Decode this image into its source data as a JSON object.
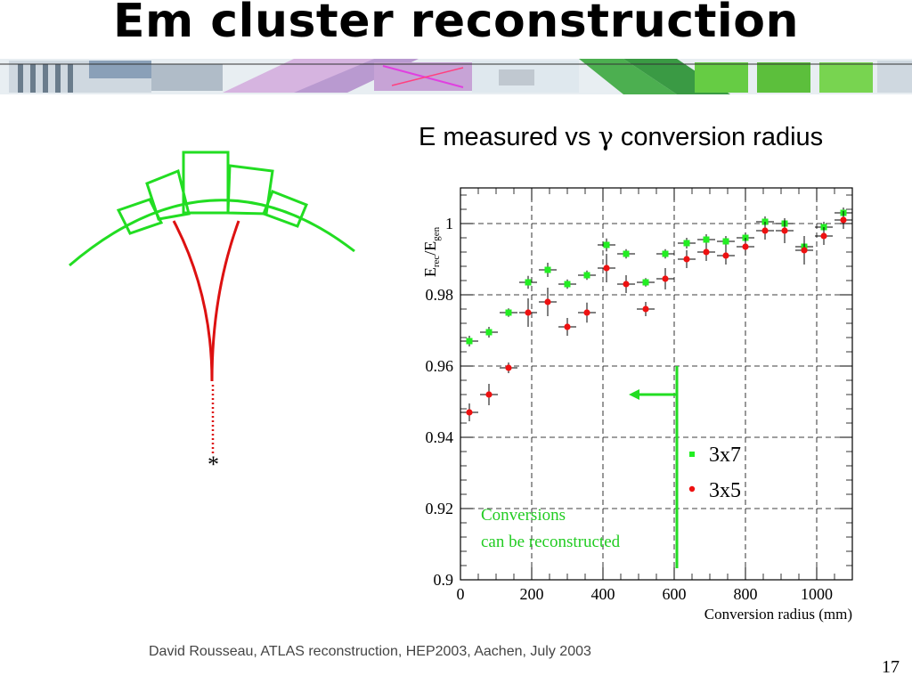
{
  "slide": {
    "title": "Em cluster reconstruction",
    "chart_heading_prefix": "E measured vs ",
    "chart_heading_symbol": "γ",
    "chart_heading_suffix": " conversion radius",
    "footer": "David Rousseau, ATLAS reconstruction, HEP2003, Aachen,  July 2003",
    "page_number": "17"
  },
  "diagram": {
    "vertex_marker": "*",
    "colors": {
      "calorimeter": "#22dd22",
      "track": "#dd1111"
    }
  },
  "annotation": {
    "line1": "Conversions",
    "line2": "can be reconstructed",
    "color": "#22cc22",
    "arrow_at_x": 600
  },
  "chart_data": {
    "type": "scatter",
    "title": "",
    "xlabel": "Conversion radius (mm)",
    "ylabel": "E_rec/E_gen",
    "ylabel_main": "E",
    "ylabel_sub1": "rec",
    "ylabel_mid": "/E",
    "ylabel_sub2": "gen",
    "xlim": [
      0,
      1100
    ],
    "ylim": [
      0.9,
      1.01
    ],
    "xticks": [
      0,
      200,
      400,
      600,
      800,
      1000
    ],
    "yticks": [
      0.9,
      0.92,
      0.94,
      0.96,
      0.98,
      1
    ],
    "xtick_labels": [
      "0",
      "200",
      "400",
      "600",
      "800",
      "1000"
    ],
    "ytick_labels": [
      "0.9",
      "0.92",
      "0.94",
      "0.96",
      "0.98",
      "1"
    ],
    "grid": true,
    "legend_position": "right-middle",
    "series": [
      {
        "name": "3x7",
        "color": "#22ee22",
        "x": [
          25,
          80,
          135,
          190,
          245,
          300,
          355,
          410,
          465,
          520,
          575,
          635,
          690,
          745,
          800,
          855,
          910,
          965,
          1020,
          1075
        ],
        "y": [
          0.967,
          0.9695,
          0.975,
          0.9835,
          0.987,
          0.983,
          0.9855,
          0.994,
          0.9915,
          0.9835,
          0.9915,
          0.9945,
          0.9955,
          0.995,
          0.996,
          1.0005,
          1.0,
          0.9935,
          0.999,
          1.003
        ],
        "yerr": [
          0.0015,
          0.0015,
          0.0012,
          0.0018,
          0.002,
          0.0013,
          0.0013,
          0.0018,
          0.0013,
          0.0012,
          0.0013,
          0.0015,
          0.0015,
          0.0015,
          0.0015,
          0.0015,
          0.0015,
          0.002,
          0.0015,
          0.0015
        ]
      },
      {
        "name": "3x5",
        "color": "#ee1111",
        "x": [
          25,
          80,
          135,
          190,
          245,
          300,
          355,
          410,
          465,
          520,
          575,
          635,
          690,
          745,
          800,
          855,
          910,
          965,
          1020,
          1075
        ],
        "y": [
          0.947,
          0.952,
          0.9595,
          0.975,
          0.978,
          0.971,
          0.975,
          0.9875,
          0.983,
          0.976,
          0.9845,
          0.99,
          0.992,
          0.991,
          0.9935,
          0.998,
          0.998,
          0.9925,
          0.9965,
          1.001
        ],
        "yerr": [
          0.0025,
          0.003,
          0.0015,
          0.004,
          0.004,
          0.0025,
          0.0028,
          0.004,
          0.0025,
          0.002,
          0.003,
          0.0025,
          0.0025,
          0.0025,
          0.0025,
          0.0025,
          0.0035,
          0.004,
          0.0025,
          0.0025
        ]
      }
    ]
  }
}
